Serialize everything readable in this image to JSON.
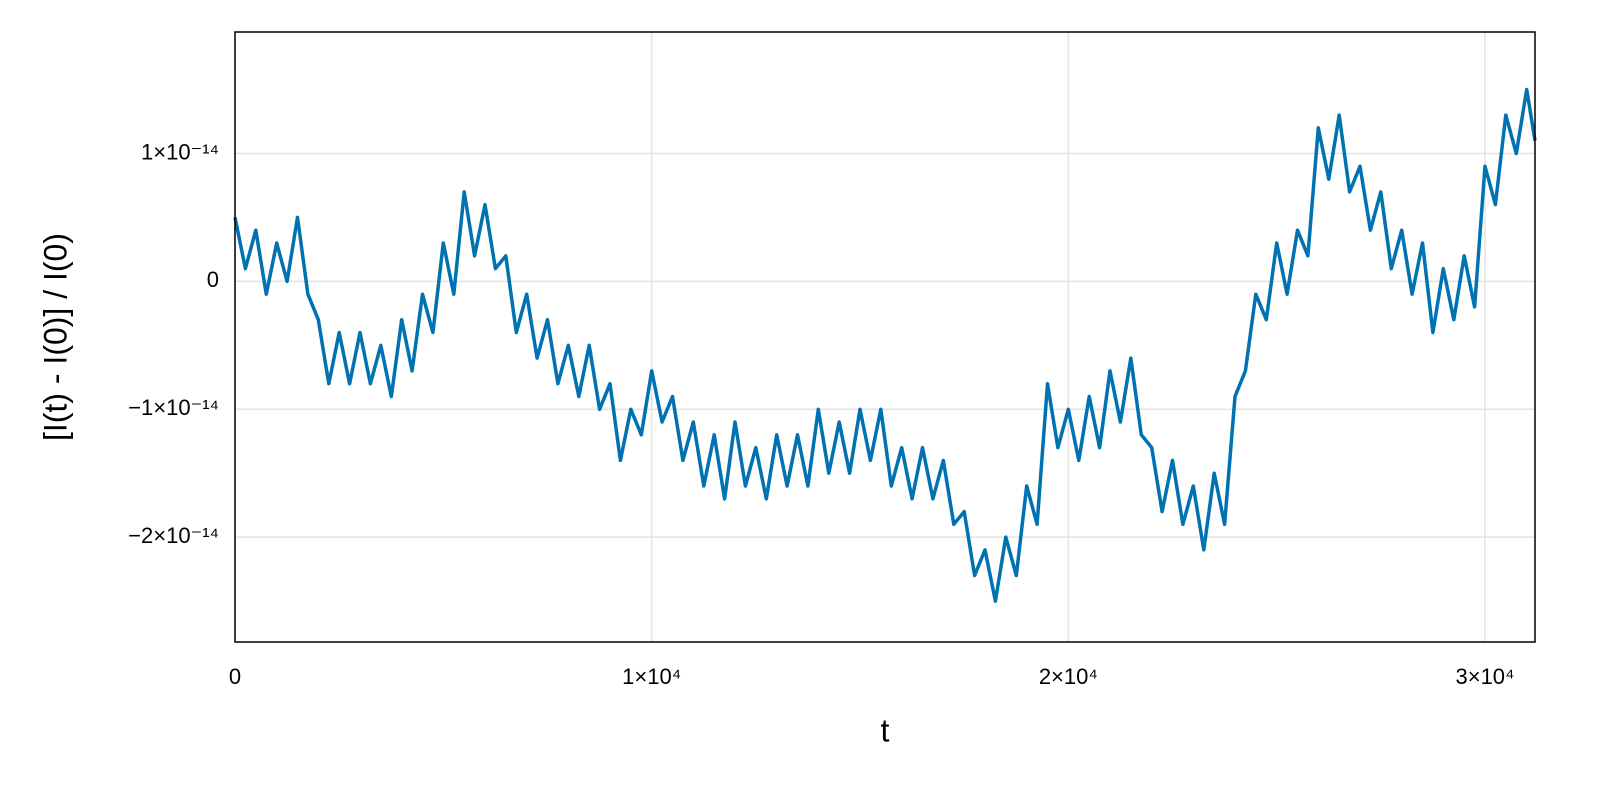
{
  "chart_data": {
    "type": "line",
    "xlabel": "t",
    "ylabel": "[I(t) - I(0)] / I(0)",
    "color": "#0072b2",
    "grid": true,
    "xlim": [
      0,
      31200
    ],
    "ylim": [
      -2.82e-14,
      1.95e-14
    ],
    "xticks": [
      0,
      {
        "value": 10000,
        "label": "1×10⁴"
      },
      {
        "value": 20000,
        "label": "2×10⁴"
      },
      {
        "value": 30000,
        "label": "3×10⁴"
      }
    ],
    "yticks": [
      {
        "value": -2e-14,
        "label": "−2×10⁻¹⁴"
      },
      {
        "value": -1e-14,
        "label": "−1×10⁻¹⁴"
      },
      0,
      {
        "value": 1e-14,
        "label": "1×10⁻¹⁴"
      }
    ],
    "x": [
      0,
      250,
      500,
      750,
      1000,
      1250,
      1500,
      1750,
      2000,
      2250,
      2500,
      2750,
      3000,
      3250,
      3500,
      3750,
      4000,
      4250,
      4500,
      4750,
      5000,
      5250,
      5500,
      5750,
      6000,
      6250,
      6500,
      6750,
      7000,
      7250,
      7500,
      7750,
      8000,
      8250,
      8500,
      8750,
      9000,
      9250,
      9500,
      9750,
      10000,
      10250,
      10500,
      10750,
      11000,
      11250,
      11500,
      11750,
      12000,
      12250,
      12500,
      12750,
      13000,
      13250,
      13500,
      13750,
      14000,
      14250,
      14500,
      14750,
      15000,
      15250,
      15500,
      15750,
      16000,
      16250,
      16500,
      16750,
      17000,
      17250,
      17500,
      17750,
      18000,
      18250,
      18500,
      18750,
      19000,
      19250,
      19500,
      19750,
      20000,
      20250,
      20500,
      20750,
      21000,
      21250,
      21500,
      21750,
      22000,
      22250,
      22500,
      22750,
      23000,
      23250,
      23500,
      23750,
      24000,
      24250,
      24500,
      24750,
      25000,
      25250,
      25500,
      25750,
      26000,
      26250,
      26500,
      26750,
      27000,
      27250,
      27500,
      27750,
      28000,
      28250,
      28500,
      28750,
      29000,
      29250,
      29500,
      29750,
      30000,
      30250,
      30500,
      30750,
      31000,
      31200
    ],
    "values": [
      5e-15,
      1e-15,
      4e-15,
      -1e-15,
      3e-15,
      0,
      5e-15,
      -1e-15,
      -3e-15,
      -8e-15,
      -4e-15,
      -8e-15,
      -4e-15,
      -8e-15,
      -5e-15,
      -9e-15,
      -3e-15,
      -7e-15,
      -1e-15,
      -4e-15,
      3e-15,
      -1e-15,
      7e-15,
      2e-15,
      6e-15,
      1e-15,
      2e-15,
      -4e-15,
      -1e-15,
      -6e-15,
      -3e-15,
      -8e-15,
      -5e-15,
      -9e-15,
      -5e-15,
      -1e-14,
      -8e-15,
      -1.4e-14,
      -1e-14,
      -1.2e-14,
      -7e-15,
      -1.1e-14,
      -9e-15,
      -1.4e-14,
      -1.1e-14,
      -1.6e-14,
      -1.2e-14,
      -1.7e-14,
      -1.1e-14,
      -1.6e-14,
      -1.3e-14,
      -1.7e-14,
      -1.2e-14,
      -1.6e-14,
      -1.2e-14,
      -1.6e-14,
      -1e-14,
      -1.5e-14,
      -1.1e-14,
      -1.5e-14,
      -1e-14,
      -1.4e-14,
      -1e-14,
      -1.6e-14,
      -1.3e-14,
      -1.7e-14,
      -1.3e-14,
      -1.7e-14,
      -1.4e-14,
      -1.9e-14,
      -1.8e-14,
      -2.3e-14,
      -2.1e-14,
      -2.5e-14,
      -2e-14,
      -2.3e-14,
      -1.6e-14,
      -1.9e-14,
      -8e-15,
      -1.3e-14,
      -1e-14,
      -1.4e-14,
      -9e-15,
      -1.3e-14,
      -7e-15,
      -1.1e-14,
      -6e-15,
      -1.2e-14,
      -1.3e-14,
      -1.8e-14,
      -1.4e-14,
      -1.9e-14,
      -1.6e-14,
      -2.1e-14,
      -1.5e-14,
      -1.9e-14,
      -9e-15,
      -7e-15,
      -1e-15,
      -3e-15,
      3e-15,
      -1e-15,
      4e-15,
      2e-15,
      1.2e-14,
      8e-15,
      1.3e-14,
      7e-15,
      9e-15,
      4e-15,
      7e-15,
      1e-15,
      4e-15,
      -1e-15,
      3e-15,
      -4e-15,
      1e-15,
      -3e-15,
      2e-15,
      -2e-15,
      9e-15,
      6e-15,
      1.3e-14,
      1e-14,
      1.5e-14,
      1.1e-14
    ]
  }
}
